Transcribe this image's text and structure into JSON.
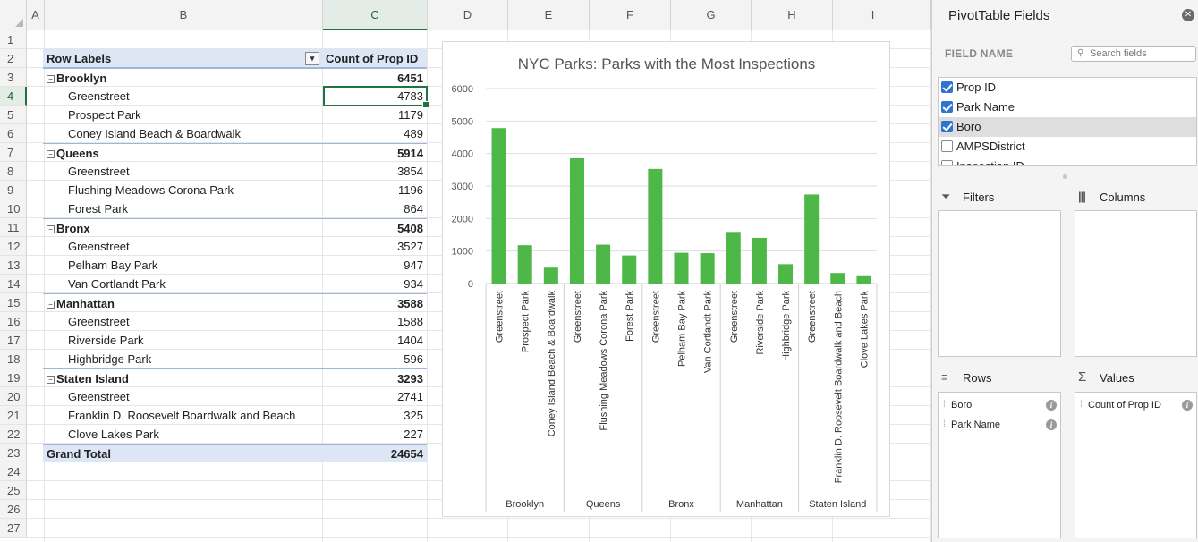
{
  "sheet": {
    "columns": [
      "A",
      "B",
      "C",
      "D",
      "E",
      "F",
      "G",
      "H",
      "I"
    ],
    "active_column": "C",
    "rows": [
      "1",
      "2",
      "3",
      "4",
      "5",
      "6",
      "7",
      "8",
      "9",
      "10",
      "11",
      "12",
      "13",
      "14",
      "15",
      "16",
      "17",
      "18",
      "19",
      "20",
      "21",
      "22",
      "23",
      "24",
      "25",
      "26",
      "27"
    ],
    "active_row": "4"
  },
  "pivot": {
    "header_label": "Row Labels",
    "header_value": "Count of Prop ID",
    "filter_icon": "filter-sort-icon",
    "collapse_symbol": "⊟",
    "groups": [
      {
        "name": "Brooklyn",
        "total": "6451",
        "parks": [
          {
            "name": "Greenstreet",
            "count": "4783"
          },
          {
            "name": "Prospect Park",
            "count": "1179"
          },
          {
            "name": "Coney Island Beach & Boardwalk",
            "count": "489"
          }
        ]
      },
      {
        "name": "Queens",
        "total": "5914",
        "parks": [
          {
            "name": "Greenstreet",
            "count": "3854"
          },
          {
            "name": "Flushing Meadows Corona Park",
            "count": "1196"
          },
          {
            "name": "Forest Park",
            "count": "864"
          }
        ]
      },
      {
        "name": "Bronx",
        "total": "5408",
        "parks": [
          {
            "name": "Greenstreet",
            "count": "3527"
          },
          {
            "name": "Pelham Bay Park",
            "count": "947"
          },
          {
            "name": "Van Cortlandt Park",
            "count": "934"
          }
        ]
      },
      {
        "name": "Manhattan",
        "total": "3588",
        "parks": [
          {
            "name": "Greenstreet",
            "count": "1588"
          },
          {
            "name": "Riverside Park",
            "count": "1404"
          },
          {
            "name": "Highbridge Park",
            "count": "596"
          }
        ]
      },
      {
        "name": "Staten Island",
        "total": "3293",
        "parks": [
          {
            "name": "Greenstreet",
            "count": "2741"
          },
          {
            "name": "Franklin D. Roosevelt Boardwalk and Beach",
            "count": "325"
          },
          {
            "name": "Clove Lakes Park",
            "count": "227"
          }
        ]
      }
    ],
    "grand_total_label": "Grand Total",
    "grand_total_value": "24654"
  },
  "chart_data": {
    "type": "bar",
    "title": "NYC Parks: Parks with the Most Inspections",
    "xlabel": "",
    "ylabel": "",
    "ylim": [
      0,
      6000
    ],
    "yticks": [
      "0",
      "1000",
      "2000",
      "3000",
      "4000",
      "5000",
      "6000"
    ],
    "grid": true,
    "legend": "none",
    "bar_color": "#4db848",
    "groups": [
      {
        "name": "Brooklyn",
        "categories": [
          "Greenstreet",
          "Prospect Park",
          "Coney Island Beach & Boardwalk"
        ],
        "values": [
          4783,
          1179,
          489
        ]
      },
      {
        "name": "Queens",
        "categories": [
          "Greenstreet",
          "Flushing Meadows Corona Park",
          "Forest Park"
        ],
        "values": [
          3854,
          1196,
          864
        ]
      },
      {
        "name": "Bronx",
        "categories": [
          "Greenstreet",
          "Pelham Bay Park",
          "Van Cortlandt Park"
        ],
        "values": [
          3527,
          947,
          934
        ]
      },
      {
        "name": "Manhattan",
        "categories": [
          "Greenstreet",
          "Riverside Park",
          "Highbridge Park"
        ],
        "values": [
          1588,
          1404,
          596
        ]
      },
      {
        "name": "Staten Island",
        "categories": [
          "Greenstreet",
          "Franklin D. Roosevelt Boardwalk and Beach",
          "Clove Lakes Park"
        ],
        "values": [
          2741,
          325,
          227
        ]
      }
    ]
  },
  "pane": {
    "title": "PivotTable Fields",
    "close_icon": "close-icon",
    "field_name_label": "FIELD NAME",
    "search_placeholder": "Search fields",
    "search_icon": "search-icon",
    "fields": [
      {
        "label": "Prop ID",
        "checked": true,
        "highlighted": false
      },
      {
        "label": "Park Name",
        "checked": true,
        "highlighted": false
      },
      {
        "label": "Boro",
        "checked": true,
        "highlighted": true
      },
      {
        "label": "AMPSDistrict",
        "checked": false,
        "highlighted": false
      },
      {
        "label": "Inspection ID",
        "checked": false,
        "highlighted": false
      }
    ],
    "filters_label": "Filters",
    "filters_icon": "filter-icon",
    "columns_label": "Columns",
    "columns_icon": "columns-icon",
    "rows_label": "Rows",
    "rows_icon": "rows-icon",
    "rows_items": [
      "Boro",
      "Park Name"
    ],
    "values_label": "Values",
    "values_icon": "sigma-icon",
    "values_items": [
      "Count of Prop ID"
    ]
  }
}
